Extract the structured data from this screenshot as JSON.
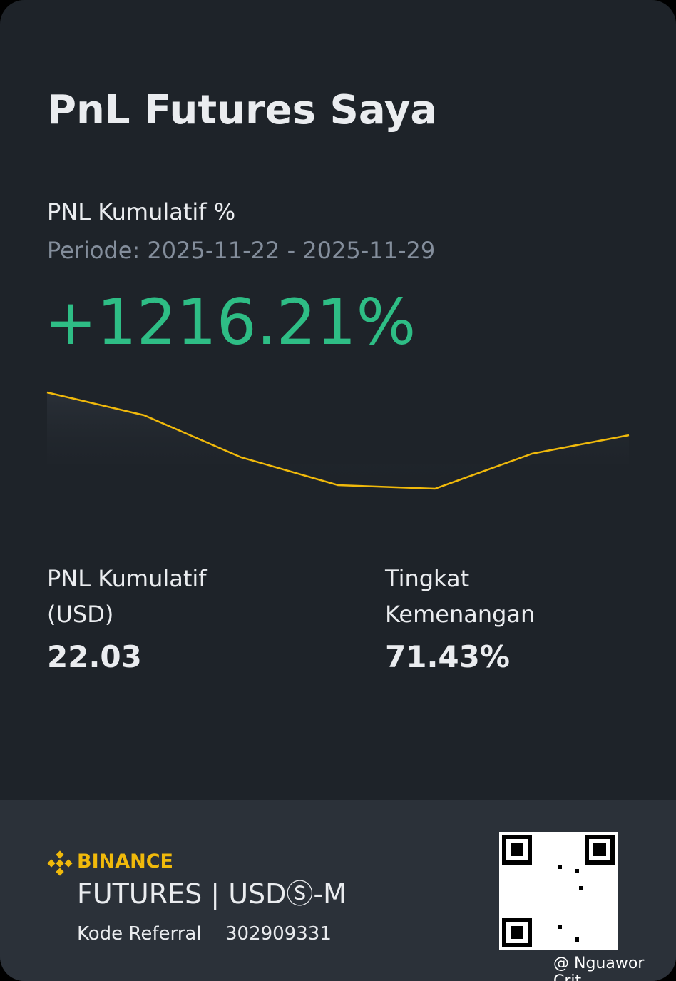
{
  "header": {
    "title": "PnL Futures Saya"
  },
  "pnl": {
    "label": "PNL Kumulatif %",
    "period": "Periode: 2025-11-22 - 2025-11-29",
    "value": "+1216.21%"
  },
  "chart": {
    "type": "line",
    "values": [
      150,
      118,
      59,
      20,
      15,
      64,
      90
    ],
    "ylim": [
      0,
      165
    ],
    "color": "#f0b90b"
  },
  "stats": [
    {
      "label": "PNL Kumulatif (USD)",
      "value": "22.03"
    },
    {
      "label": "Tingkat Kemenangan",
      "value": "71.43%"
    }
  ],
  "footer": {
    "brand": "BINANCE",
    "product": "FUTURES | USDⓈ-M",
    "referral_label": "Kode Referral",
    "referral_code": "302909331",
    "watermark": "@ Nguawor Crit"
  }
}
